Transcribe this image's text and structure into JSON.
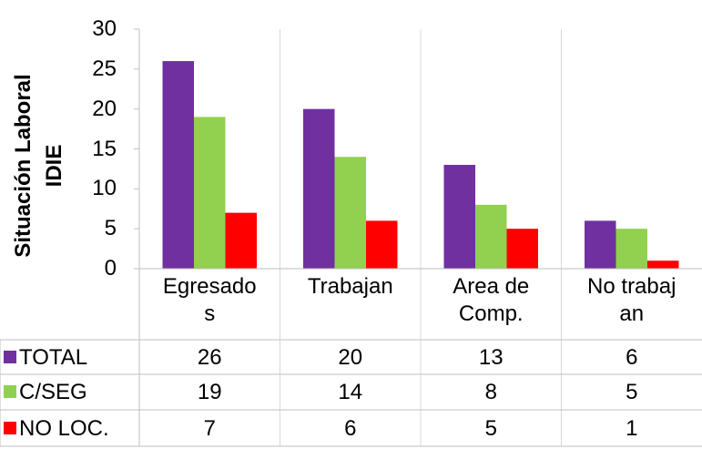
{
  "chart_data": {
    "type": "bar",
    "y_label": "Situación Laboral IDIE",
    "categories": [
      "Egresados",
      "Trabajan",
      "Area de Comp.",
      "No trabajan"
    ],
    "series": [
      {
        "name": "TOTAL",
        "color": "#7030a0",
        "values": [
          26,
          20,
          13,
          6
        ]
      },
      {
        "name": "C/SEG",
        "color": "#92d050",
        "values": [
          19,
          14,
          8,
          5
        ]
      },
      {
        "name": "NO LOC.",
        "color": "#ff0000",
        "values": [
          7,
          6,
          5,
          1
        ]
      }
    ],
    "ylim": [
      0,
      30
    ],
    "yticks": [
      0,
      5,
      10,
      15,
      20,
      25,
      30
    ],
    "data_table": true
  }
}
